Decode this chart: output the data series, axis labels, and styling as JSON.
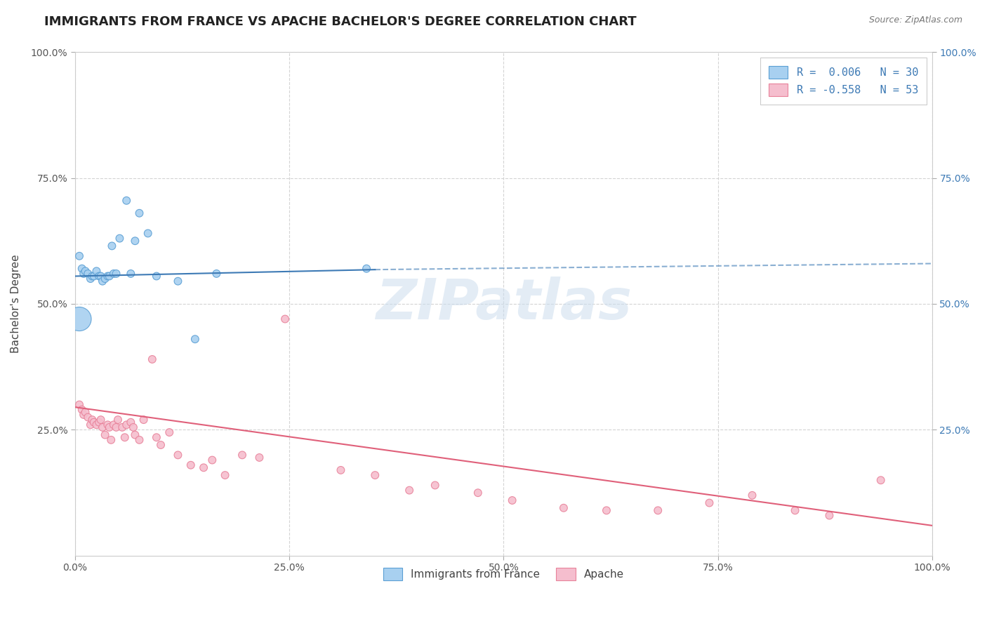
{
  "title": "IMMIGRANTS FROM FRANCE VS APACHE BACHELOR'S DEGREE CORRELATION CHART",
  "source_text": "Source: ZipAtlas.com",
  "ylabel": "Bachelor's Degree",
  "watermark": "ZIPatlas",
  "xlim": [
    0.0,
    1.0
  ],
  "ylim": [
    0.0,
    1.0
  ],
  "xtick_labels": [
    "0.0%",
    "25.0%",
    "50.0%",
    "75.0%",
    "100.0%"
  ],
  "xtick_vals": [
    0.0,
    0.25,
    0.5,
    0.75,
    1.0
  ],
  "ytick_labels": [
    "100.0%",
    "75.0%",
    "50.0%",
    "25.0%"
  ],
  "ytick_vals": [
    1.0,
    0.75,
    0.5,
    0.25
  ],
  "right_ytick_labels": [
    "100.0%",
    "75.0%",
    "50.0%",
    "25.0%"
  ],
  "right_ytick_vals": [
    1.0,
    0.75,
    0.5,
    0.25
  ],
  "blue_color": "#a8d0f0",
  "blue_edge_color": "#5b9fd4",
  "blue_line_color": "#3d7ab5",
  "pink_color": "#f5bece",
  "pink_edge_color": "#e8829a",
  "pink_line_color": "#e0607a",
  "legend_blue_R": "R =  0.006",
  "legend_blue_N": "N = 30",
  "legend_pink_R": "R = -0.558",
  "legend_pink_N": "N = 53",
  "legend_blue_label": "Immigrants from France",
  "legend_pink_label": "Apache",
  "blue_scatter_x": [
    0.005,
    0.008,
    0.01,
    0.012,
    0.015,
    0.018,
    0.02,
    0.022,
    0.025,
    0.028,
    0.03,
    0.032,
    0.035,
    0.038,
    0.04,
    0.043,
    0.045,
    0.048,
    0.052,
    0.06,
    0.065,
    0.07,
    0.075,
    0.085,
    0.095,
    0.12,
    0.14,
    0.165,
    0.005,
    0.34
  ],
  "blue_scatter_y": [
    0.595,
    0.57,
    0.56,
    0.565,
    0.56,
    0.55,
    0.555,
    0.555,
    0.565,
    0.555,
    0.555,
    0.545,
    0.55,
    0.555,
    0.555,
    0.615,
    0.56,
    0.56,
    0.63,
    0.705,
    0.56,
    0.625,
    0.68,
    0.64,
    0.555,
    0.545,
    0.43,
    0.56,
    0.47,
    0.57
  ],
  "blue_scatter_sizes": [
    60,
    60,
    60,
    60,
    60,
    60,
    60,
    60,
    60,
    60,
    60,
    60,
    60,
    60,
    60,
    60,
    60,
    60,
    60,
    60,
    60,
    60,
    60,
    60,
    60,
    60,
    60,
    60,
    600,
    60
  ],
  "pink_scatter_x": [
    0.005,
    0.008,
    0.01,
    0.012,
    0.015,
    0.018,
    0.02,
    0.022,
    0.025,
    0.028,
    0.03,
    0.032,
    0.035,
    0.038,
    0.04,
    0.042,
    0.045,
    0.048,
    0.05,
    0.055,
    0.058,
    0.06,
    0.065,
    0.068,
    0.07,
    0.075,
    0.08,
    0.09,
    0.095,
    0.1,
    0.11,
    0.12,
    0.135,
    0.15,
    0.16,
    0.175,
    0.195,
    0.215,
    0.245,
    0.31,
    0.35,
    0.39,
    0.42,
    0.47,
    0.51,
    0.57,
    0.62,
    0.68,
    0.74,
    0.79,
    0.84,
    0.88,
    0.94
  ],
  "pink_scatter_y": [
    0.3,
    0.29,
    0.28,
    0.285,
    0.275,
    0.26,
    0.27,
    0.265,
    0.26,
    0.265,
    0.27,
    0.255,
    0.24,
    0.26,
    0.255,
    0.23,
    0.26,
    0.255,
    0.27,
    0.255,
    0.235,
    0.26,
    0.265,
    0.255,
    0.24,
    0.23,
    0.27,
    0.39,
    0.235,
    0.22,
    0.245,
    0.2,
    0.18,
    0.175,
    0.19,
    0.16,
    0.2,
    0.195,
    0.47,
    0.17,
    0.16,
    0.13,
    0.14,
    0.125,
    0.11,
    0.095,
    0.09,
    0.09,
    0.105,
    0.12,
    0.09,
    0.08,
    0.15
  ],
  "pink_scatter_sizes": [
    60,
    60,
    60,
    60,
    60,
    60,
    60,
    60,
    60,
    60,
    60,
    60,
    60,
    60,
    60,
    60,
    60,
    60,
    60,
    60,
    60,
    60,
    60,
    60,
    60,
    60,
    60,
    60,
    60,
    60,
    60,
    60,
    60,
    60,
    60,
    60,
    60,
    60,
    60,
    60,
    60,
    60,
    60,
    60,
    60,
    60,
    60,
    60,
    60,
    60,
    60,
    60,
    60
  ],
  "blue_solid_line_x": [
    0.0,
    0.35
  ],
  "blue_solid_line_y": [
    0.555,
    0.568
  ],
  "blue_dashed_line_x": [
    0.35,
    1.0
  ],
  "blue_dashed_line_y": [
    0.568,
    0.58
  ],
  "pink_line_x": [
    0.0,
    1.0
  ],
  "pink_line_y_start": 0.295,
  "pink_line_y_end": 0.06,
  "grid_color": "#d0d0d0",
  "background_color": "#ffffff",
  "title_fontsize": 13,
  "axis_label_fontsize": 11,
  "right_tick_color": "#3d7ab5"
}
